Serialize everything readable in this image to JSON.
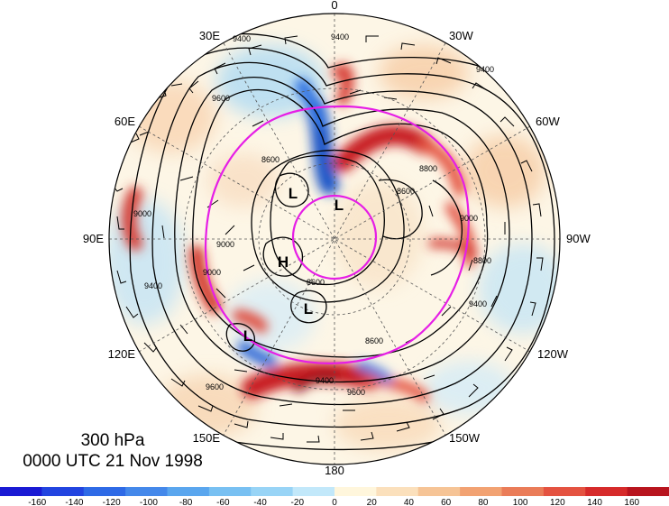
{
  "map": {
    "projection": "north-polar-stereographic",
    "longitude_labels": {
      "0": "0",
      "30W": "30W",
      "60W": "60W",
      "90W": "90W",
      "120W": "120W",
      "150W": "150W",
      "180": "180",
      "150E": "150E",
      "120E": "120E",
      "90E": "90E",
      "60E": "60E",
      "30E": "30E"
    },
    "contour_value_labels": [
      "9400",
      "9400",
      "9400",
      "9600",
      "8600",
      "8800",
      "8600",
      "9000",
      "9000",
      "9000",
      "8600",
      "8600",
      "9400",
      "9600",
      "9600",
      "9400",
      "9400",
      "9000",
      "8800"
    ],
    "pressure_centers": [
      "L",
      "L",
      "H",
      "L",
      "L"
    ],
    "highlight_circle_color": "#e61ee6",
    "contour_color": "#000000",
    "vector_style": "wind-barbs"
  },
  "caption": {
    "level": "300 hPa",
    "time": "0000 UTC 21 Nov 1998"
  },
  "colorbar": {
    "min": -180,
    "max": 180,
    "step": 20,
    "tick_labels": [
      "-160",
      "-140",
      "-120",
      "-100",
      "-80",
      "-60",
      "-40",
      "-20",
      "0",
      "20",
      "40",
      "60",
      "80",
      "100",
      "120",
      "140",
      "160"
    ],
    "colors": [
      "#1a1ad4",
      "#2244e0",
      "#2e6ae6",
      "#4488ea",
      "#5aa6ee",
      "#78c0f2",
      "#98d4f6",
      "#c2e8fa",
      "#fff6dc",
      "#fbe0bc",
      "#f6c496",
      "#f2a272",
      "#ea7c58",
      "#e45240",
      "#d62a2a",
      "#b8141e"
    ]
  }
}
